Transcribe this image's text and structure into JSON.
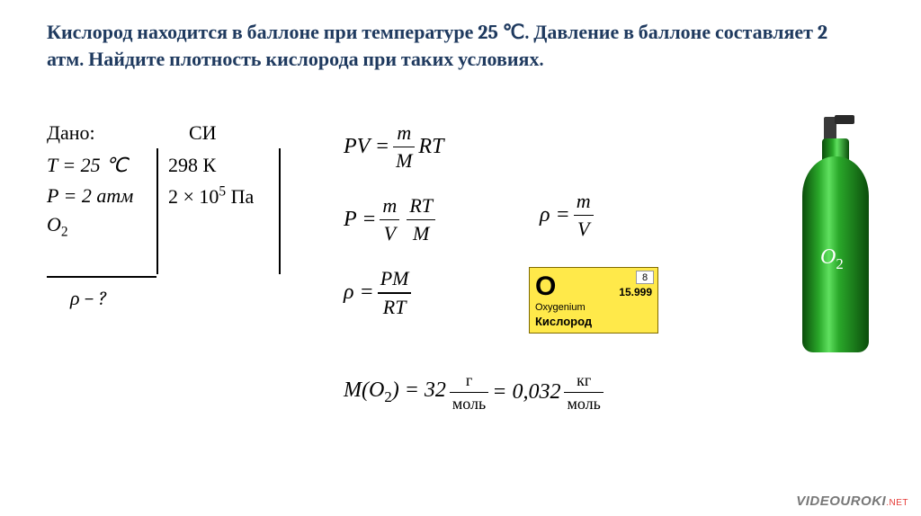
{
  "title": {
    "pre": "Кислород находится в баллоне при температуре ",
    "temp": "25 ℃",
    "mid1": ". Давление в баллоне составляет ",
    "press": "2 атм",
    "mid2": ". Найдите плотность кислорода при таких условиях."
  },
  "given": {
    "dano_label": "Дано:",
    "si_label": "СИ",
    "T_expr": "T = 25 ℃",
    "T_si": "298 К",
    "P_expr": "P = 2 атм",
    "P_si_coef": "2 × 10",
    "P_si_exp": "5",
    "P_si_unit": " Па",
    "gas": "O",
    "gas_sub": "2",
    "find": "ρ − ?"
  },
  "formulas": {
    "eq1_l": "PV = ",
    "eq1_num": "m",
    "eq1_den": "M",
    "eq1_r": "RT",
    "eq2_l": "P = ",
    "eq2_num1": "m",
    "eq2_den1": "V",
    "eq2_num2": "RT",
    "eq2_den2": "M",
    "eq3_l": "ρ = ",
    "eq3_num": "PM",
    "eq3_den": "RT",
    "rho_l": "ρ = ",
    "rho_num": "m",
    "rho_den": "V"
  },
  "molar": {
    "lhs": "M(O",
    "lhs_sub": "2",
    "lhs_close": ") = 32 ",
    "unit1_num": "г",
    "unit1_den": "моль",
    "eq": " = 0,032 ",
    "unit2_num": "кг",
    "unit2_den": "моль"
  },
  "element": {
    "symbol": "O",
    "number": "8",
    "mass": "15.999",
    "latin": "Oxygenium",
    "russian": "Кислород",
    "bg_color": "#ffe94a"
  },
  "cylinder": {
    "label": "O",
    "label_sub": "2",
    "body_color": "#1f8f1f"
  },
  "watermark": {
    "brand": "VIDEOUROKI",
    "suffix": ".NET"
  }
}
